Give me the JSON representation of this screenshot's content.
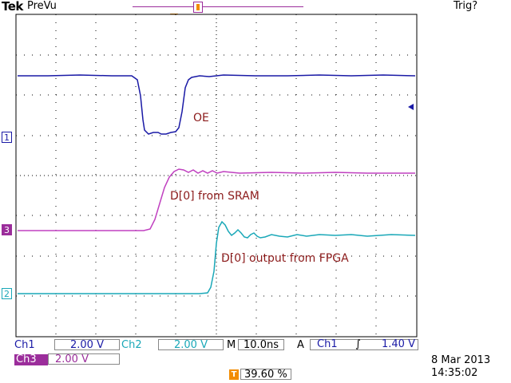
{
  "header": {
    "brand": "Tek",
    "mode": "PreVu",
    "trigger_status": "Trig?",
    "trigger_marker": "T"
  },
  "annotations": {
    "oe": "OE",
    "sram": "D[0] from SRAM",
    "fpga": "D[0] output from FPGA"
  },
  "channel_markers": {
    "ch1": "1",
    "ch3": "3",
    "ch2": "2"
  },
  "status": {
    "ch1": {
      "label": "Ch1",
      "scale": "2.00 V"
    },
    "ch2": {
      "label": "Ch2",
      "scale": "2.00 V"
    },
    "ch3": {
      "label": "Ch3",
      "scale": "2.00 V"
    },
    "timebase": {
      "label": "M",
      "value": "10.0ns"
    },
    "trigger": {
      "mode": "A",
      "source": "Ch1",
      "slope": "rising-edge",
      "slope_glyph": "∫",
      "level": "1.40 V"
    },
    "trigger_position": {
      "icon": "T",
      "value": "39.60 %"
    },
    "date": "8 Mar 2013",
    "time": "14:35:02"
  },
  "colors": {
    "ch1": "#1a1aa6",
    "ch2": "#1aa8b8",
    "ch3": "#c040c0",
    "annotation": "#8b1a1a",
    "trigger": "#f28c00"
  }
}
